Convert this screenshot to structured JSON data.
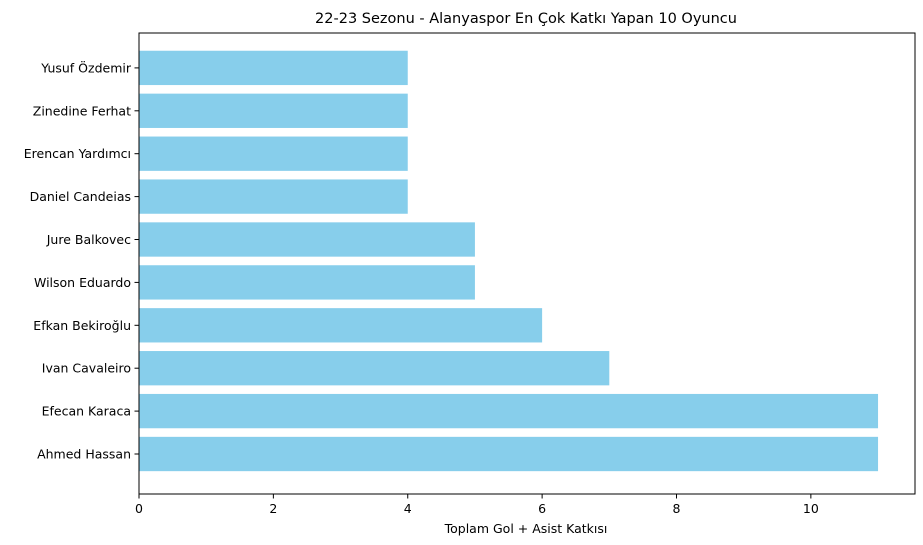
{
  "chart_data": {
    "type": "bar",
    "orientation": "horizontal",
    "title": "22-23 Sezonu - Alanyaspor En Çok Katkı Yapan 10 Oyuncu",
    "xlabel": "Toplam Gol + Asist Katkısı",
    "ylabel": "",
    "categories": [
      "Ahmed Hassan",
      "Efecan Karaca",
      "Ivan Cavaleiro",
      "Efkan Bekiroğlu",
      "Wilson Eduardo",
      "Jure Balkovec",
      "Daniel Candeias",
      "Erencan Yardımcı",
      "Zinedine Ferhat",
      "Yusuf Özdemir"
    ],
    "values": [
      11,
      11,
      7,
      6,
      5,
      5,
      4,
      4,
      4,
      4
    ],
    "xlim": [
      0,
      11.55
    ],
    "xticks": [
      0,
      2,
      4,
      6,
      8,
      10
    ],
    "bar_color": "#87ceeb",
    "grid": false,
    "legend": "none"
  }
}
